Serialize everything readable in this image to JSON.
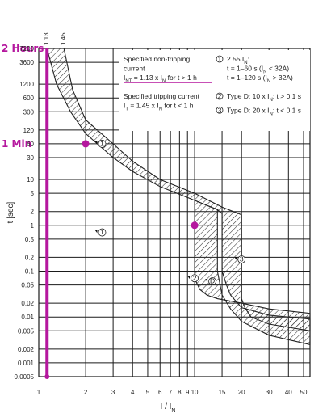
{
  "chart_data": {
    "type": "line",
    "xlabel": "I / I",
    "xlabel_sub": "N",
    "ylabel": "t [sec]",
    "xscale": "log",
    "yscale": "log",
    "xlim": [
      1,
      55
    ],
    "ylim": [
      0.0005,
      7200
    ],
    "x_ticks": [
      1,
      2,
      3,
      4,
      5,
      6,
      7,
      8,
      9,
      10,
      15,
      20,
      30,
      40,
      50
    ],
    "y_ticks": [
      {
        "v": 7200,
        "label": "7200"
      },
      {
        "v": 3600,
        "label": "3600"
      },
      {
        "v": 1200,
        "label": "1200"
      },
      {
        "v": 600,
        "label": "600"
      },
      {
        "v": 300,
        "label": "300"
      },
      {
        "v": 120,
        "label": "120"
      },
      {
        "v": 60,
        "label": "60"
      },
      {
        "v": 30,
        "label": "30"
      },
      {
        "v": 10,
        "label": "10"
      },
      {
        "v": 5,
        "label": "5"
      },
      {
        "v": 2,
        "label": "2"
      },
      {
        "v": 1,
        "label": "1"
      },
      {
        "v": 0.5,
        "label": "0.5"
      },
      {
        "v": 0.2,
        "label": "0.2"
      },
      {
        "v": 0.1,
        "label": "0.1"
      },
      {
        "v": 0.05,
        "label": "0.05"
      },
      {
        "v": 0.02,
        "label": "0.02"
      },
      {
        "v": 0.01,
        "label": "0.01"
      },
      {
        "v": 0.005,
        "label": "0.005"
      },
      {
        "v": 0.002,
        "label": "0.002"
      },
      {
        "v": 0.001,
        "label": "0.001"
      },
      {
        "v": 0.0005,
        "label": "0.0005"
      }
    ],
    "top_labels": [
      {
        "x": 1.13,
        "label": "1.13"
      },
      {
        "x": 1.45,
        "label": "1.45"
      }
    ],
    "bands": [
      {
        "name": "Tripping band B",
        "pattern": "hatch",
        "lower": [
          [
            1.13,
            7200
          ],
          [
            1.3,
            1200
          ],
          [
            1.6,
            300
          ],
          [
            2,
            100
          ],
          [
            3,
            30
          ],
          [
            4,
            15
          ],
          [
            6,
            7
          ],
          [
            10,
            3.5
          ],
          [
            14,
            2.2
          ],
          [
            15,
            1.8
          ],
          [
            15,
            0.1
          ],
          [
            16,
            0.05
          ],
          [
            17,
            0.03
          ],
          [
            20,
            0.016
          ],
          [
            30,
            0.011
          ],
          [
            55,
            0.009
          ]
        ],
        "upper": [
          [
            1.45,
            7200
          ],
          [
            1.65,
            900
          ],
          [
            2,
            200
          ],
          [
            3,
            60
          ],
          [
            4,
            25
          ],
          [
            6,
            10
          ],
          [
            10,
            5
          ],
          [
            15,
            2.5
          ],
          [
            20,
            1.7
          ],
          [
            20,
            0.025
          ],
          [
            21,
            0.016
          ],
          [
            23,
            0.01
          ],
          [
            30,
            0.007
          ],
          [
            55,
            0.005
          ]
        ]
      },
      {
        "name": "Tripping band D",
        "pattern": "hatch",
        "lower": [
          [
            10,
            3.5
          ],
          [
            10,
            0.1
          ],
          [
            10.2,
            0.06
          ],
          [
            10.8,
            0.04
          ],
          [
            12,
            0.03
          ],
          [
            14,
            0.025
          ],
          [
            20,
            0.02
          ],
          [
            30,
            0.015
          ],
          [
            55,
            0.012
          ]
        ],
        "upper": [
          [
            14,
            2.2
          ],
          [
            14,
            0.1
          ],
          [
            15,
            0.03
          ],
          [
            17,
            0.015
          ],
          [
            20,
            0.008
          ],
          [
            30,
            0.004
          ],
          [
            55,
            0.0025
          ]
        ]
      }
    ],
    "markers": [
      {
        "x": 2,
        "y": 60
      },
      {
        "x": 10,
        "y": 1
      }
    ],
    "reference_line": {
      "x": 1.13,
      "from": 0.0005,
      "to": 7200
    },
    "callouts": [
      {
        "id": "c1a",
        "label": "1",
        "x": 2.55,
        "y": 60
      },
      {
        "id": "c1b",
        "label": "1",
        "x": 2.55,
        "y": 0.7
      },
      {
        "id": "c2",
        "label": "2",
        "x": 10,
        "y": 0.07
      },
      {
        "id": "c3",
        "label": "3",
        "x": 20,
        "y": 0.18
      },
      {
        "id": "cD",
        "label": "D",
        "x": 13,
        "y": 0.06
      }
    ],
    "magenta_labels": [
      {
        "text": "2 Hours",
        "y": 7200
      },
      {
        "text": "1 Min",
        "y": 60
      }
    ],
    "legend_box": {
      "left": [
        {
          "t": "Specified non-tripping"
        },
        {
          "t": "current"
        },
        {
          "t": "I",
          "sub": "NT",
          "rest": " = 1.13 x I",
          "sub2": "N",
          "rest2": " for t > 1 h"
        },
        {
          "t": ""
        },
        {
          "t": "Specified tripping current"
        },
        {
          "t": "I",
          "sub": "T",
          "rest": " = 1.45 x I",
          "sub2": "N",
          "rest2": " for t < 1 h"
        }
      ],
      "right": [
        {
          "num": "1",
          "t": "2.55 I",
          "sub": "N",
          "rest": ":"
        },
        {
          "num": "",
          "t": "t = 1–60 s (I",
          "sub": "N",
          "rest": " < 32A)"
        },
        {
          "num": "",
          "t": "t = 1–120 s (I",
          "sub": "N",
          "rest": " > 32A)"
        },
        {
          "num": "2",
          "t": "Type D: 10 x I",
          "sub": "N",
          "rest": ": t > 0.1 s"
        },
        {
          "num": "3",
          "t": "Type D: 20 x I",
          "sub": "N",
          "rest": ": t < 0.1 s"
        }
      ]
    },
    "colors": {
      "accent": "#b5179e",
      "grid": "#1a1a1a",
      "band": "#333333"
    }
  }
}
